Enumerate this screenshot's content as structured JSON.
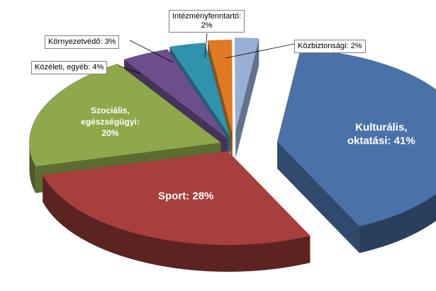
{
  "chart_data": {
    "type": "pie",
    "style": "3d-exploded",
    "legend": "none",
    "slices": [
      {
        "label": "Kulturális, oktatási: 41%",
        "lines": [
          "Kulturális,",
          "oktatási: 41%"
        ],
        "value": 41,
        "color": "#4A72A8",
        "label_placement": "inside"
      },
      {
        "label": "Sport: 28%",
        "lines": [
          "Sport: 28%"
        ],
        "value": 28,
        "color": "#A73F3C",
        "label_placement": "inside"
      },
      {
        "label": "Szociális, egészségügyi: 20%",
        "lines": [
          "Szociális,",
          "egészségügyi:",
          "20%"
        ],
        "value": 20,
        "color": "#8FA84B",
        "label_placement": "inside"
      },
      {
        "label": "Közéleti, egyéb: 4%",
        "lines": [
          "Közéleti, egyéb: 4%"
        ],
        "value": 4,
        "color": "#6C4E8C",
        "label_placement": "callout"
      },
      {
        "label": "Környezetvédő: 3%",
        "lines": [
          "Környezetvédő: 3%"
        ],
        "value": 3,
        "color": "#2F93AE",
        "label_placement": "callout"
      },
      {
        "label": "Intézményfenntartó: 2%",
        "lines": [
          "Intézményfenntartó:",
          "2%"
        ],
        "value": 2,
        "color": "#E07A22",
        "label_placement": "callout"
      },
      {
        "label": "Közbiztonsági: 2%",
        "lines": [
          "Közbiztonsági:  2%"
        ],
        "value": 2,
        "color": "#98AFD6",
        "label_placement": "callout"
      }
    ]
  }
}
